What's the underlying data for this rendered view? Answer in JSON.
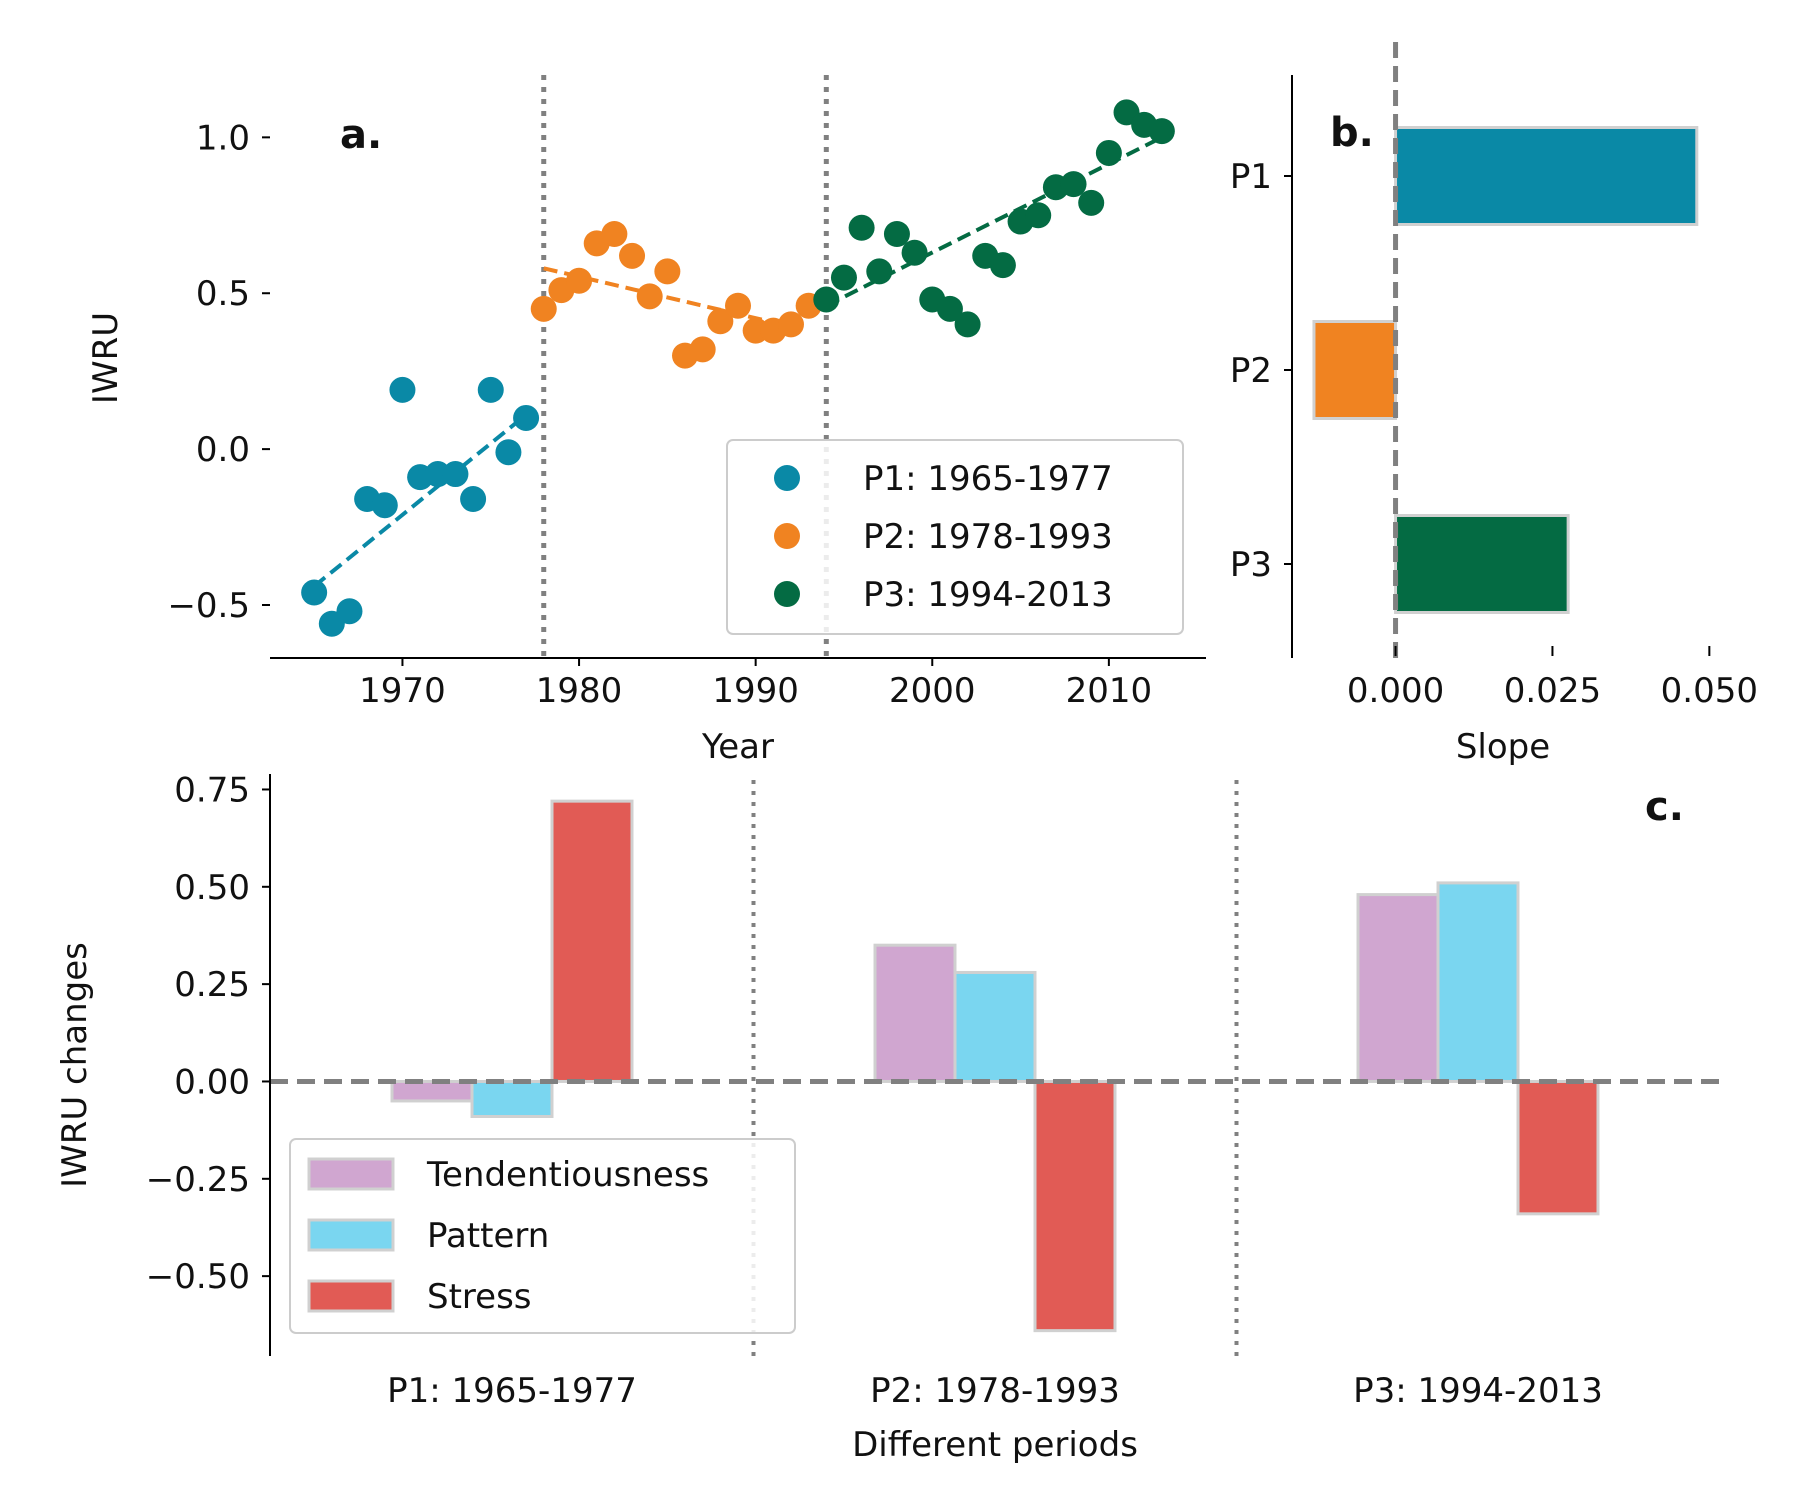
{
  "chart_data": [
    {
      "panel_label": "a.",
      "type": "scatter",
      "xlabel": "Year",
      "ylabel": "IWRU",
      "xlim": [
        1962.5,
        2015.5
      ],
      "ylim": [
        -0.67,
        1.2
      ],
      "xticks": [
        1970,
        1980,
        1990,
        2000,
        2010
      ],
      "yticks": [
        1.0,
        0.5,
        0.0,
        -0.5
      ],
      "ytick_labels": [
        "1.0",
        "0.5",
        "0.0",
        "−0.5"
      ],
      "vlines_dotted": [
        1978,
        1994
      ],
      "legend_position": "bottom-right",
      "series": [
        {
          "name": "P1: 1965-1977",
          "color": "#0a89a6",
          "x": [
            1965,
            1966,
            1967,
            1968,
            1969,
            1970,
            1971,
            1972,
            1973,
            1974,
            1975,
            1976,
            1977
          ],
          "y": [
            -0.46,
            -0.56,
            -0.52,
            -0.16,
            -0.18,
            0.19,
            -0.09,
            -0.08,
            -0.08,
            -0.16,
            0.19,
            -0.01,
            0.1
          ],
          "trend": [
            [
              1965,
              -0.44
            ],
            [
              1977,
              0.11
            ]
          ]
        },
        {
          "name": "P2: 1978-1993",
          "color": "#f08321",
          "x": [
            1978,
            1979,
            1980,
            1981,
            1982,
            1983,
            1984,
            1985,
            1986,
            1987,
            1988,
            1989,
            1990,
            1991,
            1992,
            1993
          ],
          "y": [
            0.45,
            0.51,
            0.54,
            0.66,
            0.69,
            0.62,
            0.49,
            0.57,
            0.3,
            0.32,
            0.41,
            0.46,
            0.38,
            0.38,
            0.4,
            0.46
          ],
          "trend": [
            [
              1978,
              0.58
            ],
            [
              1993,
              0.38
            ]
          ]
        },
        {
          "name": "P3: 1994-2013",
          "color": "#046b43",
          "x": [
            1994,
            1995,
            1996,
            1997,
            1998,
            1999,
            2000,
            2001,
            2002,
            2003,
            2004,
            2005,
            2006,
            2007,
            2008,
            2009,
            2010,
            2011,
            2012,
            2013
          ],
          "y": [
            0.48,
            0.55,
            0.71,
            0.57,
            0.69,
            0.63,
            0.48,
            0.45,
            0.4,
            0.62,
            0.59,
            0.73,
            0.75,
            0.84,
            0.85,
            0.79,
            0.95,
            1.08,
            1.04,
            1.02
          ],
          "trend": [
            [
              1994,
              0.46
            ],
            [
              2013,
              1.0
            ]
          ]
        }
      ]
    },
    {
      "panel_label": "b.",
      "type": "bar",
      "orientation": "horizontal",
      "xlabel": "Slope",
      "categories": [
        "P1",
        "P2",
        "P3"
      ],
      "values": [
        0.048,
        -0.013,
        0.0275
      ],
      "colors": [
        "#0a89a6",
        "#f08321",
        "#046b43"
      ],
      "xlim": [
        -0.0165,
        0.056
      ],
      "xticks": [
        0.0,
        0.025,
        0.05
      ],
      "xtick_labels": [
        "0.000",
        "0.025",
        "0.050"
      ],
      "vline_dashed": 0
    },
    {
      "panel_label": "c.",
      "type": "bar",
      "xlabel": "Different periods",
      "ylabel": "IWRU changes",
      "categories": [
        "P1: 1965-1977",
        "P2: 1978-1993",
        "P3: 1994-2013"
      ],
      "ylim": [
        -0.7,
        0.8
      ],
      "yticks": [
        0.75,
        0.5,
        0.25,
        0.0,
        -0.25,
        -0.5
      ],
      "ytick_labels": [
        "0.75",
        "0.50",
        "0.25",
        "0.00",
        "−0.25",
        "−0.50"
      ],
      "hline_dashed": 0,
      "legend_position": "lower-left",
      "series": [
        {
          "name": "Tendentiousness",
          "color": "#d0a6d0",
          "values": [
            -0.05,
            0.35,
            0.48
          ]
        },
        {
          "name": "Pattern",
          "color": "#7ad6f0",
          "values": [
            -0.09,
            0.28,
            0.51
          ]
        },
        {
          "name": "Stress",
          "color": "#e15b55",
          "values": [
            0.72,
            -0.64,
            -0.34
          ]
        }
      ]
    }
  ]
}
